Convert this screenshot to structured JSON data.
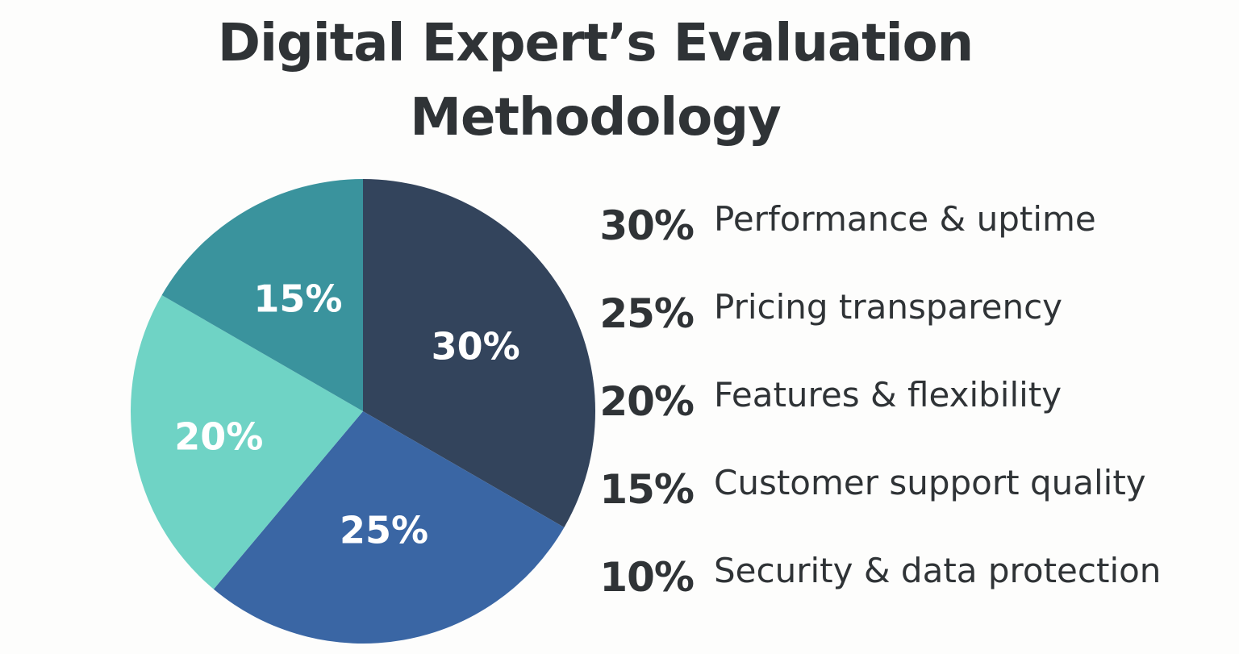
{
  "chart_data": {
    "type": "pie",
    "title": "Digital Expert’s Evaluation Methodology",
    "title_lines": [
      "Digital Expert’s Evaluation",
      "Methodology"
    ],
    "unit": "%",
    "slices": [
      {
        "label": "Performance & uptime",
        "value": 30,
        "value_label": "30%",
        "color": "#33445c"
      },
      {
        "label": "Pricing transparency",
        "value": 25,
        "value_label": "25%",
        "color": "#3a66a4"
      },
      {
        "label": "Features & flexibility",
        "value": 20,
        "value_label": "20%",
        "color": "#6fd3c5"
      },
      {
        "label": "Customer support quality",
        "value": 15,
        "value_label": "15%",
        "color": "#3a939d"
      },
      {
        "label": "Security & data protection",
        "value": 10,
        "value_label": "10%",
        "color": "#2f3336"
      }
    ],
    "pie_slices_shown": [
      "Pricing transparency",
      "Features & flexibility",
      "Customer support quality",
      "Performance & uptime"
    ],
    "legend_position": "right"
  }
}
